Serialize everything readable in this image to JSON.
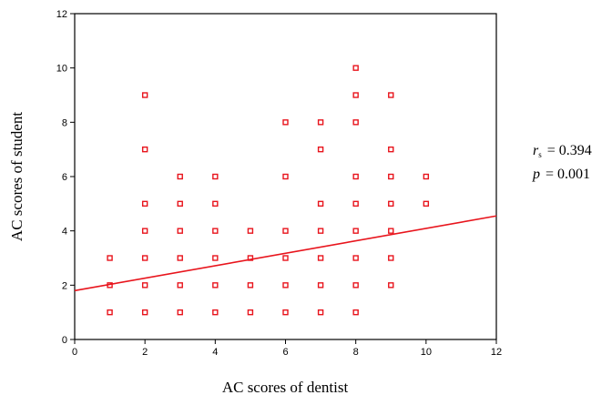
{
  "chart_data": {
    "type": "scatter",
    "xlabel": "AC scores of dentist",
    "ylabel": "AC scores of student",
    "xlim": [
      0,
      12
    ],
    "ylim": [
      0,
      12
    ],
    "xticks": [
      "0",
      "2",
      "4",
      "6",
      "8",
      "10",
      "12"
    ],
    "yticks": [
      "0",
      "2",
      "4",
      "6",
      "8",
      "10",
      "12"
    ],
    "grid": false,
    "marker_color": "#e8141c",
    "line_color": "#e8141c",
    "points": [
      [
        1,
        1
      ],
      [
        1,
        2
      ],
      [
        1,
        3
      ],
      [
        2,
        1
      ],
      [
        2,
        2
      ],
      [
        2,
        3
      ],
      [
        2,
        4
      ],
      [
        2,
        5
      ],
      [
        2,
        7
      ],
      [
        2,
        9
      ],
      [
        3,
        1
      ],
      [
        3,
        2
      ],
      [
        3,
        3
      ],
      [
        3,
        4
      ],
      [
        3,
        5
      ],
      [
        3,
        6
      ],
      [
        4,
        1
      ],
      [
        4,
        2
      ],
      [
        4,
        3
      ],
      [
        4,
        4
      ],
      [
        4,
        5
      ],
      [
        4,
        6
      ],
      [
        5,
        1
      ],
      [
        5,
        2
      ],
      [
        5,
        3
      ],
      [
        5,
        4
      ],
      [
        6,
        1
      ],
      [
        6,
        2
      ],
      [
        6,
        3
      ],
      [
        6,
        4
      ],
      [
        6,
        6
      ],
      [
        6,
        8
      ],
      [
        7,
        1
      ],
      [
        7,
        2
      ],
      [
        7,
        3
      ],
      [
        7,
        4
      ],
      [
        7,
        5
      ],
      [
        7,
        7
      ],
      [
        7,
        8
      ],
      [
        8,
        1
      ],
      [
        8,
        2
      ],
      [
        8,
        3
      ],
      [
        8,
        4
      ],
      [
        8,
        5
      ],
      [
        8,
        6
      ],
      [
        8,
        8
      ],
      [
        8,
        9
      ],
      [
        8,
        10
      ],
      [
        9,
        2
      ],
      [
        9,
        3
      ],
      [
        9,
        4
      ],
      [
        9,
        5
      ],
      [
        9,
        6
      ],
      [
        9,
        7
      ],
      [
        9,
        9
      ],
      [
        10,
        5
      ],
      [
        10,
        6
      ]
    ],
    "fit_line": {
      "x": [
        0,
        12
      ],
      "y": [
        1.8,
        4.55
      ]
    },
    "stats": {
      "r_symbol": "r",
      "r_subscript": "s",
      "r_value": "= 0.394",
      "p_symbol": "p",
      "p_value": "= 0.001"
    }
  }
}
